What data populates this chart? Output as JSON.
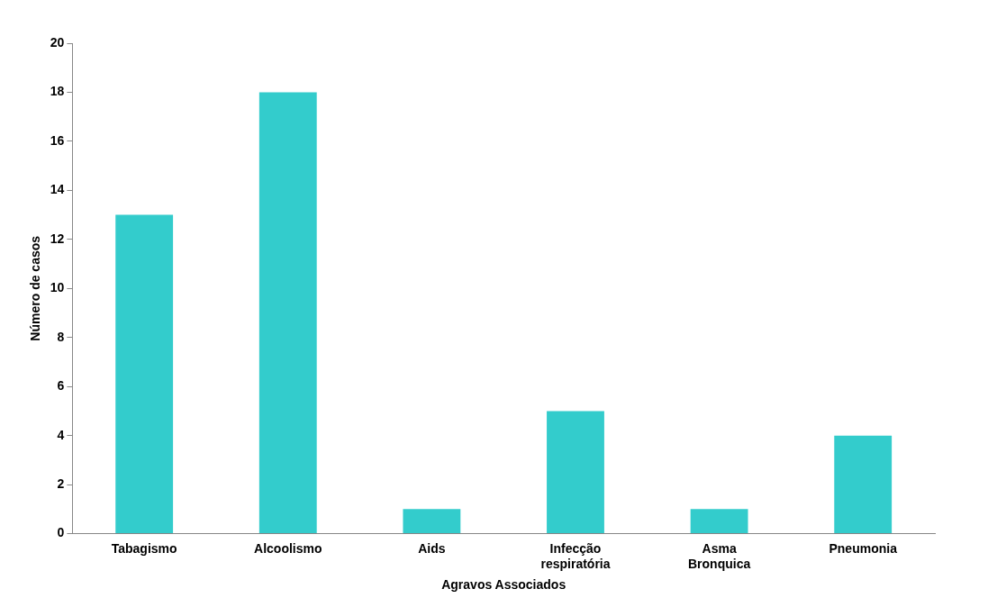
{
  "chart_data": {
    "type": "bar",
    "xlabel": "Agravos Associados",
    "ylabel": "Número de casos",
    "categories": [
      "Tabagismo",
      "Alcoolismo",
      "Aids",
      "Infecção respiratória",
      "Asma Bronquica",
      "Pneumonia"
    ],
    "values": [
      13,
      18,
      1,
      5,
      1,
      4
    ],
    "color": "#33cccc",
    "ylim": [
      0,
      20
    ],
    "yticks": [
      0,
      2,
      4,
      6,
      8,
      10,
      12,
      14,
      16,
      18,
      20
    ],
    "grid": false,
    "legend": false
  }
}
